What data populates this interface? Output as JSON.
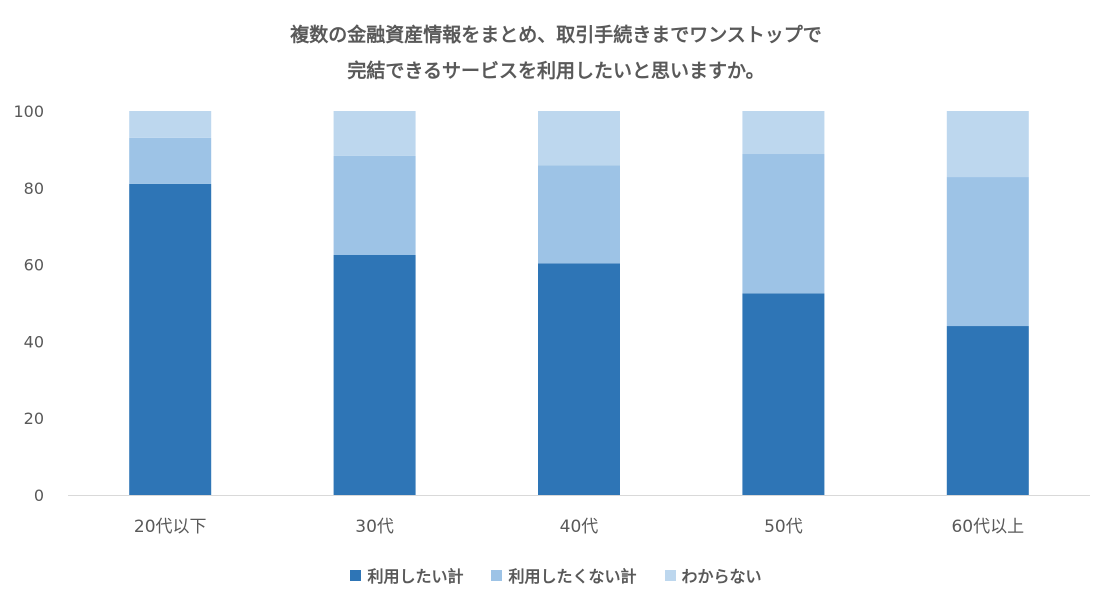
{
  "chart_data": {
    "type": "bar",
    "stacked": true,
    "title_lines": [
      "複数の金融資産情報をまとめ、取引手続きまでワンストップで",
      "完結できるサービスを利用したいと思いますか。"
    ],
    "categories": [
      "20代以下",
      "30代",
      "40代",
      "50代",
      "60代以上"
    ],
    "series": [
      {
        "name": "利用したい計",
        "color": "#2E75B6",
        "values": [
          81,
          62.5,
          60.3,
          52.5,
          44
        ]
      },
      {
        "name": "利用したくない計",
        "color": "#9DC3E6",
        "values": [
          12,
          25.8,
          25.5,
          36.3,
          38.8
        ]
      },
      {
        "name": "わからない",
        "color": "#BDD7EE",
        "values": [
          7,
          11.7,
          14.2,
          11.2,
          17.2
        ]
      }
    ],
    "ylim": [
      0,
      100
    ],
    "yticks": [
      0,
      20,
      40,
      60,
      80,
      100
    ],
    "grid": false,
    "legend_position": "bottom"
  }
}
